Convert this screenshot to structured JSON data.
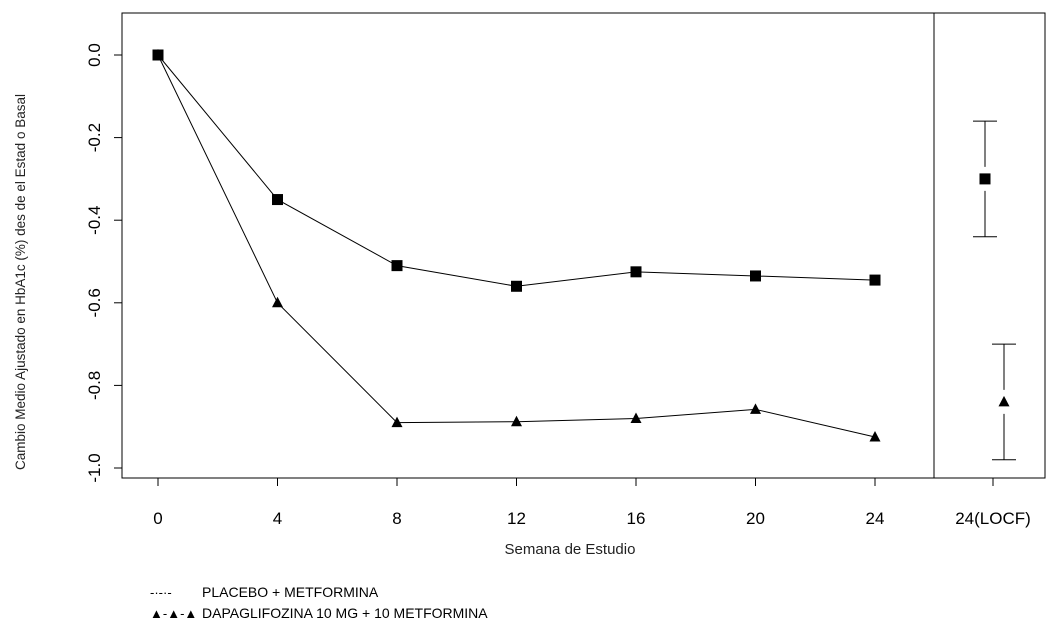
{
  "chart_data": {
    "type": "line",
    "xlabel": "Semana de Estudio",
    "ylabel": "Cambio Medio Ajustado en HbA1c (%) des de el Estad o Basal",
    "x_categories": [
      "0",
      "4",
      "8",
      "12",
      "16",
      "20",
      "24"
    ],
    "x_extra_category": "24(LOCF)",
    "y_ticks": [
      "0.0",
      "-0.2",
      "-0.4",
      "-0.6",
      "-0.8",
      "-1.0"
    ],
    "ylim": [
      -1.0,
      0.0
    ],
    "series": [
      {
        "name": "PLACEBO + METFORMINA",
        "marker": "square",
        "x": [
          0,
          4,
          8,
          12,
          16,
          20,
          24
        ],
        "values": [
          0.0,
          -0.35,
          -0.51,
          -0.56,
          -0.525,
          -0.535,
          -0.545
        ],
        "locf": {
          "value": -0.3,
          "lower": -0.44,
          "upper": -0.16
        }
      },
      {
        "name": "DAPAGLIFOZINA 10 MG + 10 METFORMINA",
        "marker": "triangle",
        "x": [
          0,
          4,
          8,
          12,
          16,
          20,
          24
        ],
        "values": [
          0.0,
          -0.6,
          -0.89,
          -0.888,
          -0.88,
          -0.858,
          -0.925
        ],
        "locf": {
          "value": -0.84,
          "lower": -0.98,
          "upper": -0.7
        }
      }
    ],
    "legend": [
      {
        "symbol": "-·-·-",
        "label": "PLACEBO + METFORMINA"
      },
      {
        "symbol": "▲-▲-▲",
        "label": "DAPAGLIFOZINA 10 MG + 10 METFORMINA"
      }
    ],
    "legend_position": "bottom-left",
    "grid": false
  }
}
